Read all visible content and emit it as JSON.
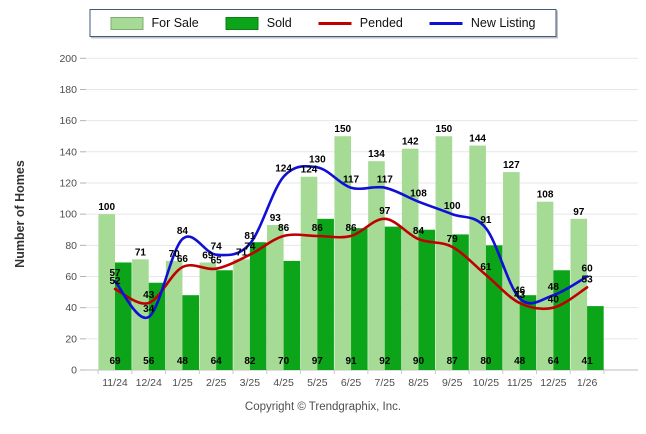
{
  "chart_data": {
    "type": "bar+line",
    "categories": [
      "11/24",
      "12/24",
      "1/25",
      "2/25",
      "3/25",
      "4/25",
      "5/25",
      "6/25",
      "7/25",
      "8/25",
      "9/25",
      "10/25",
      "11/25",
      "12/25",
      "1/26"
    ],
    "series": [
      {
        "name": "For Sale",
        "type": "bar",
        "color": "#A5DB95",
        "label_position": "above-bar",
        "values": [
          100,
          71,
          70,
          69,
          71,
          93,
          124,
          150,
          134,
          142,
          150,
          144,
          127,
          108,
          97
        ]
      },
      {
        "name": "Sold",
        "type": "bar",
        "color": "#0CA519",
        "label_position": "bar-bottom",
        "values": [
          69,
          56,
          48,
          64,
          82,
          70,
          97,
          91,
          92,
          90,
          87,
          80,
          48,
          64,
          41
        ]
      },
      {
        "name": "Pended",
        "type": "line",
        "color": "#C00000",
        "values": [
          52,
          43,
          66,
          65,
          74,
          86,
          86,
          86,
          97,
          84,
          79,
          61,
          43,
          40,
          53
        ]
      },
      {
        "name": "New Listing",
        "type": "line",
        "color": "#0F0FD6",
        "values": [
          57,
          34,
          84,
          74,
          81,
          124,
          130,
          117,
          117,
          108,
          100,
          91,
          46,
          48,
          60
        ]
      }
    ],
    "title": "",
    "xlabel": "",
    "ylabel": "Number of Homes",
    "ylim": [
      0,
      200
    ],
    "ytick_step": 20,
    "grid": true,
    "legend_position": "top-center",
    "value_label_color": "#000000",
    "axis_text_color": "#4d4d4d",
    "grid_color": "#e7e7e7"
  },
  "footer": {
    "copyright": "Copyright © Trendgraphix, Inc."
  }
}
